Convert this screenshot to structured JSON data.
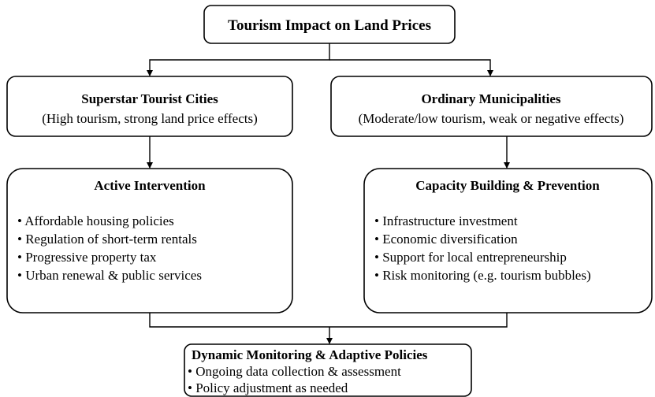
{
  "root": {
    "title": "Tourism Impact on Land Prices"
  },
  "left_branch": {
    "title": "Superstar Tourist Cities",
    "subtitle": "(High tourism, strong land price effects)",
    "action": {
      "title": "Active Intervention",
      "bullets": [
        "• Affordable housing policies",
        "• Regulation of short-term rentals",
        "• Progressive property tax",
        "• Urban renewal & public services"
      ]
    }
  },
  "right_branch": {
    "title": "Ordinary Municipalities",
    "subtitle": "(Moderate/low tourism, weak or negative effects)",
    "action": {
      "title": "Capacity Building & Prevention",
      "bullets": [
        "• Infrastructure investment",
        "• Economic diversification",
        "• Support for local entrepreneurship",
        "• Risk monitoring (e.g. tourism bubbles)"
      ]
    }
  },
  "final": {
    "title": "Dynamic Monitoring & Adaptive Policies",
    "bullets": [
      "• Ongoing data collection & assessment",
      "• Policy adjustment as needed"
    ]
  }
}
